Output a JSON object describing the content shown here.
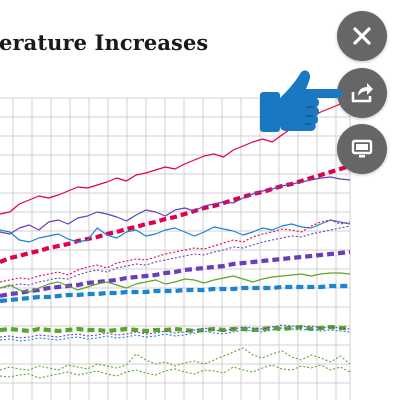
{
  "chart": {
    "title": "erature Increases"
  },
  "controls": {
    "close_icon": "close-icon",
    "share_icon": "share-icon",
    "present_icon": "monitor-icon",
    "pointer_icon": "pointing-hand-icon"
  },
  "colors": {
    "button_gray": "#666666",
    "hand_blue": "#1a78c2",
    "grid": "#d0d0d0",
    "red": "#e0004d",
    "purple": "#6a3dbb",
    "blue": "#1a84d0",
    "green": "#5aa62a"
  },
  "chart_data": {
    "type": "line",
    "title": "erature Increases",
    "grid": true,
    "legend": "none",
    "ylim": [
      0,
      320
    ],
    "x": [
      0,
      1,
      2,
      3,
      4,
      5,
      6,
      7,
      8,
      9,
      10,
      11,
      12,
      13,
      14,
      15,
      16,
      17,
      18,
      19,
      20,
      21,
      22,
      23,
      24,
      25,
      26,
      27,
      28,
      29,
      30,
      31,
      32,
      33,
      34,
      35,
      36
    ],
    "series": [
      {
        "color": "#e0004d",
        "style": "thin-solid",
        "values": [
          186,
          188,
          196,
          200,
          204,
          202,
          205,
          209,
          213,
          212,
          215,
          218,
          222,
          219,
          225,
          227,
          230,
          233,
          231,
          236,
          240,
          244,
          246,
          243,
          250,
          254,
          258,
          261,
          258,
          265,
          272,
          278,
          283,
          288,
          292,
          296,
          294
        ]
      },
      {
        "color": "#e0004d",
        "style": "thick-dashed",
        "values": [
          138,
          142,
          144,
          147,
          149,
          152,
          154,
          156,
          159,
          161,
          163,
          166,
          168,
          171,
          173,
          176,
          178,
          181,
          183,
          186,
          189,
          192,
          194,
          197,
          200,
          203,
          206,
          208,
          211,
          214,
          216,
          219,
          222,
          225,
          228,
          231,
          234
        ]
      },
      {
        "color": "#6a3dbb",
        "style": "thin-solid",
        "values": [
          168,
          166,
          172,
          175,
          170,
          178,
          180,
          176,
          182,
          184,
          188,
          186,
          183,
          179,
          185,
          190,
          188,
          184,
          190,
          192,
          189,
          194,
          196,
          198,
          197,
          202,
          206,
          209,
          211,
          214,
          216,
          218,
          220,
          222,
          223,
          221,
          220
        ]
      },
      {
        "color": "#1a84d0",
        "style": "thin-solid",
        "values": [
          170,
          168,
          160,
          158,
          162,
          164,
          166,
          161,
          158,
          160,
          172,
          165,
          162,
          168,
          170,
          164,
          166,
          170,
          172,
          168,
          164,
          168,
          173,
          171,
          169,
          165,
          168,
          172,
          170,
          174,
          176,
          173,
          172,
          176,
          180,
          178,
          176
        ]
      },
      {
        "color": "#e0004d",
        "style": "thin-dotted",
        "values": [
          118,
          120,
          122,
          121,
          124,
          126,
          128,
          125,
          130,
          133,
          135,
          132,
          137,
          139,
          141,
          140,
          143,
          146,
          148,
          150,
          152,
          151,
          154,
          157,
          160,
          158,
          163,
          166,
          168,
          171,
          170,
          168,
          174,
          178,
          180,
          176,
          178
        ]
      },
      {
        "color": "#6a3dbb",
        "style": "thin-dotted",
        "values": [
          112,
          114,
          116,
          115,
          118,
          120,
          122,
          121,
          125,
          128,
          130,
          128,
          132,
          134,
          136,
          135,
          138,
          140,
          142,
          144,
          146,
          145,
          148,
          150,
          153,
          152,
          155,
          158,
          160,
          162,
          164,
          163,
          166,
          168,
          170,
          172,
          174
        ]
      },
      {
        "color": "#6a3dbb",
        "style": "thick-dashed",
        "values": [
          104,
          106,
          107,
          109,
          110,
          112,
          113,
          114,
          115,
          117,
          118,
          119,
          120,
          122,
          123,
          124,
          125,
          127,
          128,
          130,
          131,
          132,
          133,
          134,
          136,
          137,
          138,
          139,
          140,
          141,
          142,
          143,
          144,
          145,
          146,
          147,
          148
        ]
      },
      {
        "color": "#5aa62a",
        "style": "thin-solid",
        "values": [
          112,
          115,
          110,
          108,
          112,
          116,
          118,
          114,
          110,
          113,
          116,
          118,
          115,
          112,
          116,
          118,
          120,
          116,
          118,
          121,
          120,
          117,
          120,
          122,
          124,
          121,
          118,
          121,
          123,
          124,
          125,
          126,
          124,
          126,
          127,
          127,
          126
        ]
      },
      {
        "color": "#1a84d0",
        "style": "thick-dashed",
        "values": [
          99,
          100,
          101,
          102,
          103,
          103,
          104,
          105,
          105,
          106,
          106,
          107,
          107,
          108,
          108,
          108,
          109,
          109,
          109,
          110,
          110,
          110,
          111,
          111,
          111,
          112,
          112,
          112,
          112,
          113,
          113,
          113,
          113,
          113,
          114,
          114,
          114
        ]
      },
      {
        "color": "#5aa62a",
        "style": "thick-dashed",
        "values": [
          70,
          71,
          70,
          69,
          71,
          70,
          69,
          70,
          71,
          70,
          70,
          69,
          70,
          71,
          70,
          69,
          70,
          70,
          71,
          70,
          69,
          70,
          71,
          70,
          71,
          71,
          70,
          71,
          72,
          71,
          72,
          73,
          71,
          72,
          73,
          72,
          72
        ]
      },
      {
        "color": "#6a3dbb",
        "style": "thin-dotted",
        "values": [
          63,
          64,
          62,
          63,
          65,
          64,
          63,
          65,
          66,
          64,
          65,
          67,
          65,
          66,
          68,
          66,
          67,
          69,
          67,
          68,
          70,
          72,
          70,
          69,
          71,
          73,
          72,
          71,
          73,
          75,
          74,
          73,
          74,
          72,
          73,
          72,
          71
        ]
      },
      {
        "color": "#1a84d0",
        "style": "thin-dotted",
        "values": [
          60,
          61,
          59,
          60,
          62,
          61,
          60,
          62,
          63,
          61,
          62,
          64,
          62,
          63,
          65,
          63,
          64,
          66,
          64,
          65,
          67,
          69,
          67,
          66,
          68,
          70,
          69,
          68,
          70,
          72,
          71,
          70,
          71,
          69,
          70,
          69,
          68
        ]
      },
      {
        "color": "#5aa62a",
        "style": "thin-dotted",
        "values": [
          24,
          23,
          25,
          26,
          22,
          24,
          26,
          28,
          25,
          27,
          29,
          26,
          24,
          28,
          30,
          27,
          25,
          29,
          31,
          28,
          26,
          30,
          29,
          27,
          33,
          30,
          28,
          32,
          35,
          31,
          30,
          34,
          32,
          35,
          30,
          33,
          28
        ]
      },
      {
        "color": "#5aa62a",
        "style": "thin-dotted",
        "values": [
          30,
          33,
          31,
          30,
          34,
          32,
          30,
          35,
          33,
          31,
          36,
          34,
          32,
          35,
          46,
          40,
          36,
          38,
          34,
          37,
          39,
          36,
          40,
          44,
          48,
          52,
          45,
          42,
          46,
          49,
          43,
          40,
          45,
          42,
          38,
          44,
          36
        ]
      }
    ]
  }
}
